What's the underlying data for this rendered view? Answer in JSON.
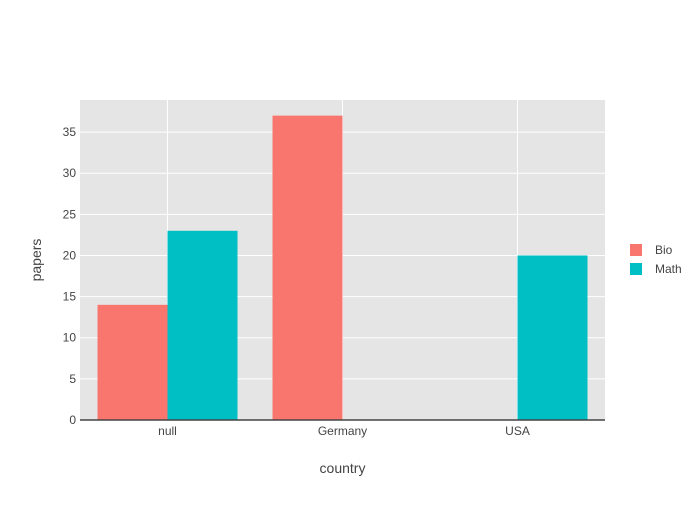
{
  "chart_data": {
    "type": "bar",
    "title": "",
    "xlabel": "country",
    "ylabel": "papers",
    "categories": [
      "null",
      "Germany",
      "USA"
    ],
    "series": [
      {
        "name": "Bio",
        "color": "#F8766D",
        "values": [
          14,
          37,
          null
        ]
      },
      {
        "name": "Math",
        "color": "#00BFC4",
        "values": [
          23,
          null,
          20
        ]
      }
    ],
    "ylim": [
      0,
      38.9
    ],
    "yticks": [
      0,
      5,
      10,
      15,
      20,
      25,
      30,
      35
    ],
    "grid": true,
    "legend_position": "right",
    "plot_background": "#E5E5E5",
    "grid_color": "#FFFFFF"
  }
}
